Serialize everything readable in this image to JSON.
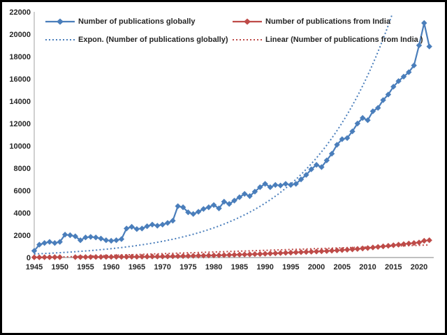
{
  "window": {
    "background": "#ffffff",
    "frame_border": "#000000"
  },
  "colors": {
    "global_series": "#4a7ebb",
    "india_series": "#be4b48",
    "y_axis_line": "#b7b7b7",
    "x_axis_line": "#9a9a9a",
    "axis_text": "#262626"
  },
  "chart_data": {
    "type": "line",
    "title": "",
    "xlabel": "",
    "ylabel": "",
    "grid": false,
    "legend_position": "top-inside",
    "x": [
      1945,
      1946,
      1947,
      1948,
      1949,
      1950,
      1951,
      1952,
      1953,
      1954,
      1955,
      1956,
      1957,
      1958,
      1959,
      1960,
      1961,
      1962,
      1963,
      1964,
      1965,
      1966,
      1967,
      1968,
      1969,
      1970,
      1971,
      1972,
      1973,
      1974,
      1975,
      1976,
      1977,
      1978,
      1979,
      1980,
      1981,
      1982,
      1983,
      1984,
      1985,
      1986,
      1987,
      1988,
      1989,
      1990,
      1991,
      1992,
      1993,
      1994,
      1995,
      1996,
      1997,
      1998,
      1999,
      2000,
      2001,
      2002,
      2003,
      2004,
      2005,
      2006,
      2007,
      2008,
      2009,
      2010,
      2011,
      2012,
      2013,
      2014,
      2015,
      2016,
      2017,
      2018,
      2019,
      2020,
      2021,
      2022
    ],
    "series": [
      {
        "name": "Number of publications globally",
        "color": "#4a7ebb",
        "marker": "diamond",
        "line": "solid",
        "values": [
          600,
          1150,
          1300,
          1400,
          1300,
          1400,
          2050,
          2000,
          1900,
          1550,
          1800,
          1850,
          1800,
          1700,
          1550,
          1500,
          1550,
          1650,
          2600,
          2750,
          2550,
          2600,
          2800,
          2950,
          2850,
          2950,
          3100,
          3300,
          4600,
          4500,
          4050,
          3900,
          4100,
          4350,
          4500,
          4700,
          4400,
          5000,
          4800,
          5100,
          5400,
          5700,
          5500,
          5900,
          6300,
          6600,
          6300,
          6500,
          6450,
          6600,
          6500,
          6600,
          7000,
          7400,
          7900,
          8300,
          8100,
          8700,
          9300,
          10100,
          10600,
          10700,
          11300,
          12000,
          12500,
          12300,
          13100,
          13400,
          14100,
          14600,
          15300,
          15800,
          16200,
          16600,
          17200,
          19000,
          21000,
          18900
        ]
      },
      {
        "name": "Number of publications from India",
        "color": "#be4b48",
        "marker": "diamond",
        "line": "solid",
        "values": [
          20,
          20,
          25,
          25,
          30,
          30,
          null,
          null,
          40,
          40,
          45,
          45,
          50,
          50,
          55,
          55,
          60,
          60,
          65,
          70,
          70,
          75,
          80,
          85,
          90,
          95,
          100,
          110,
          120,
          130,
          140,
          150,
          160,
          170,
          180,
          190,
          200,
          215,
          230,
          245,
          260,
          275,
          290,
          305,
          320,
          340,
          360,
          380,
          400,
          420,
          440,
          460,
          480,
          500,
          520,
          540,
          560,
          580,
          610,
          640,
          670,
          700,
          730,
          770,
          810,
          850,
          900,
          950,
          1000,
          1050,
          1100,
          1150,
          1200,
          1250,
          1300,
          1350,
          1500,
          1550
        ]
      }
    ],
    "trendlines": [
      {
        "name": "Expon. (Number of publications globally)",
        "color": "#4a7ebb",
        "style": "dotted",
        "fit": "exponential",
        "a": 320,
        "b": 0.0605,
        "x_start": 1945,
        "x_end": 2022
      },
      {
        "name": "Linear (Number of publications from India )",
        "color": "#be4b48",
        "style": "dotted",
        "fit": "linear",
        "slope": 15,
        "intercept": -30,
        "x_start": 1945,
        "x_end": 2022
      }
    ],
    "y_axis": {
      "min": 0,
      "max": 22000,
      "step": 2000,
      "ticks": [
        0,
        2000,
        4000,
        6000,
        8000,
        10000,
        12000,
        14000,
        16000,
        18000,
        20000,
        22000
      ]
    },
    "x_axis": {
      "min": 1945,
      "max": 2023,
      "tick_step": 5,
      "ticks": [
        1945,
        1950,
        1955,
        1960,
        1965,
        1970,
        1975,
        1980,
        1985,
        1990,
        1995,
        2000,
        2005,
        2010,
        2015,
        2020
      ]
    }
  }
}
